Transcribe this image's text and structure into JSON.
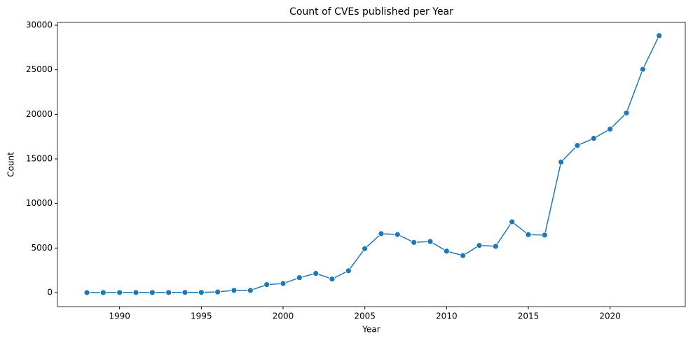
{
  "chart_data": {
    "type": "line",
    "title": "Count of CVEs published per Year",
    "x_label": "Year",
    "y_label": "Count",
    "x": [
      1988,
      1989,
      1990,
      1991,
      1992,
      1993,
      1994,
      1995,
      1996,
      1997,
      1998,
      1999,
      2000,
      2001,
      2002,
      2003,
      2004,
      2005,
      2006,
      2007,
      2008,
      2009,
      2010,
      2011,
      2012,
      2013,
      2014,
      2015,
      2016,
      2017,
      2018,
      2019,
      2020,
      2021,
      2022,
      2023
    ],
    "values": [
      2,
      3,
      11,
      15,
      13,
      13,
      25,
      25,
      75,
      252,
      246,
      894,
      1020,
      1677,
      2156,
      1527,
      2451,
      4935,
      6610,
      6520,
      5632,
      5736,
      4652,
      4155,
      5297,
      5191,
      7939,
      6504,
      6454,
      14645,
      16511,
      17305,
      18350,
      20155,
      25050,
      28830
    ],
    "color": "#1f77b4",
    "xlim": [
      1986.2,
      2024.6
    ],
    "xticks": [
      1990,
      1995,
      2000,
      2005,
      2010,
      2015,
      2020
    ],
    "ylim": [
      -1570,
      30315
    ],
    "yticks": [
      0,
      5000,
      10000,
      15000,
      20000,
      25000,
      30000
    ],
    "grid": false
  }
}
